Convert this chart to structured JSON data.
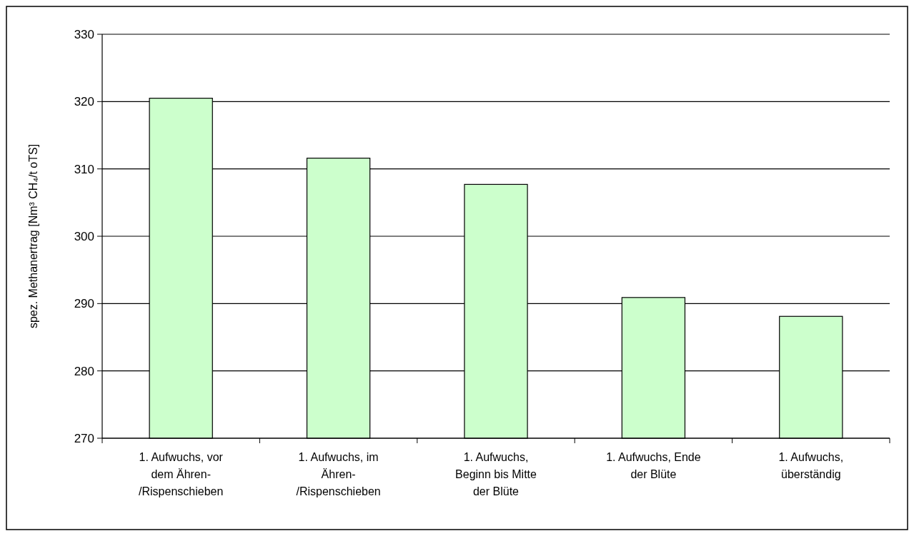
{
  "chart_data": {
    "type": "bar",
    "ylabel": "spez. Methanertrag [Nm³ CH₄/t oTS]",
    "categories": [
      "1. Aufwuchs, vor\ndem Ähren-\n/Rispenschieben",
      "1. Aufwuchs, im\nÄhren-\n/Rispenschieben",
      "1. Aufwuchs,\nBeginn bis Mitte\nder Blüte",
      "1. Aufwuchs, Ende\nder Blüte",
      "1. Aufwuchs,\nüberständig"
    ],
    "values": [
      320.5,
      311.6,
      307.7,
      290.9,
      288.1
    ],
    "color": "#ccffcc",
    "ylim": [
      270,
      330
    ],
    "yticks": [
      270,
      280,
      290,
      300,
      310,
      320,
      330
    ],
    "grid": "y"
  }
}
